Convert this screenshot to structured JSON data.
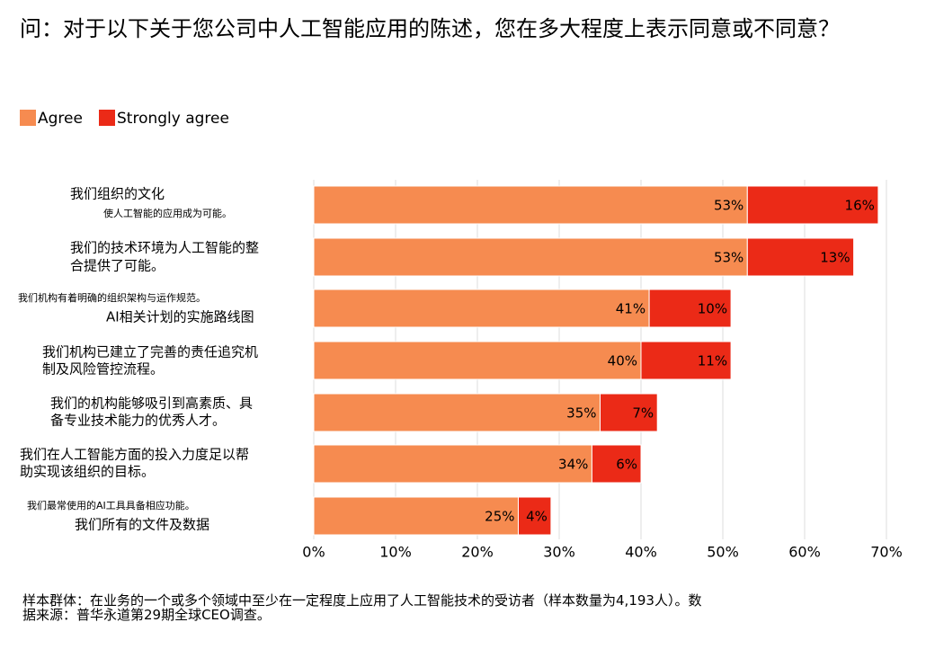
{
  "chart_data": {
    "type": "stacked-bar-horizontal",
    "title": "问：对于以下关于您公司中人工智能应用的陈述，您在多大程度上表示同意或不同意？",
    "footnote": "样本群体：在业务的一个或多个领域中至少在一定程度上应用了人工智能技术的受访者（样本数量为4,193人）。数据来源：普华永道第29期全球CEO调查。",
    "categories": [
      [
        "我们组织的文化",
        "使人工智能的应用成为可能。"
      ],
      [
        "我们的技术环境为人工智能的整",
        "合提供了可能。"
      ],
      [
        "我们机构有着明确的组织架构与运作规范。",
        "AI相关计划的实施路线图"
      ],
      [
        "我们机构已建立了完善的责任追究机",
        "制及风险管控流程。"
      ],
      [
        "我们的机构能够吸引到高素质、具",
        "备专业技术能力的优秀人才。"
      ],
      [
        "我们在人工智能方面的投入力度足以帮",
        "助实现该组织的目标。"
      ],
      [
        "我们最常使用的AI工具具备相应功能。",
        "我们所有的文件及数据"
      ]
    ],
    "series": [
      {
        "name": "Agree",
        "color": "#f68b50",
        "values": [
          53,
          53,
          41,
          40,
          35,
          34,
          25
        ],
        "value_labels": [
          "53%",
          "53%",
          "41%",
          "40%",
          "35%",
          "34%",
          "25%"
        ]
      },
      {
        "name": "Strongly agree",
        "color": "#eb2a17",
        "values": [
          16,
          13,
          10,
          11,
          7,
          6,
          4
        ],
        "value_labels": [
          "16%",
          "13%",
          "10%",
          "11%",
          "7%",
          "6%",
          "4%"
        ]
      }
    ],
    "xlim": [
      0,
      70
    ],
    "xticks": [
      {
        "value": 0,
        "label": "0%"
      },
      {
        "value": 10,
        "label": "10%"
      },
      {
        "value": 20,
        "label": "20%"
      },
      {
        "value": 30,
        "label": "30%"
      },
      {
        "value": 40,
        "label": "40%"
      },
      {
        "value": 50,
        "label": "50%"
      },
      {
        "value": 60,
        "label": "60%"
      },
      {
        "value": 70,
        "label": "70%"
      }
    ],
    "grid": true
  }
}
